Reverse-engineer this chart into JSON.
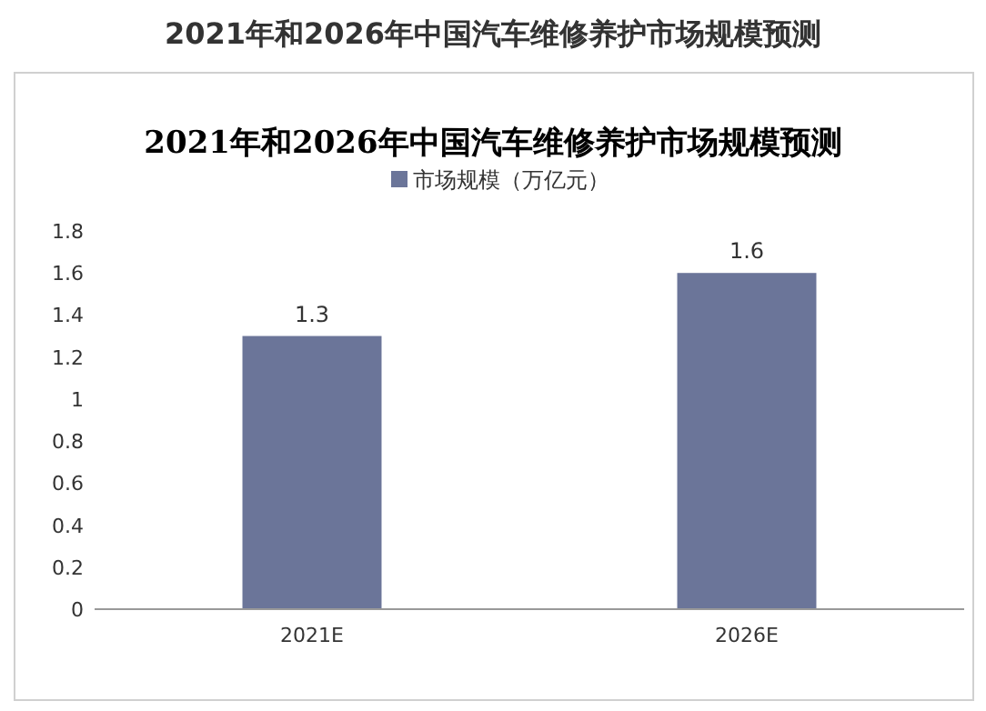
{
  "chart_data": {
    "type": "bar",
    "title": "2021年和2026年中国汽车维修养护市场规模预测",
    "subtitle": "2021年和2026年中国汽车维修养护市场规模预测",
    "categories": [
      "2021E",
      "2026E"
    ],
    "series": [
      {
        "name": "市场规模（万亿元）",
        "color": "#6b7599",
        "values": [
          1.3,
          1.6
        ]
      }
    ],
    "ylim": [
      0,
      1.8
    ],
    "yticks": [
      0,
      0.2,
      0.4,
      0.6,
      0.8,
      1,
      1.2,
      1.4,
      1.6,
      1.8
    ],
    "grid": false,
    "legend": "top",
    "data_labels": true
  }
}
